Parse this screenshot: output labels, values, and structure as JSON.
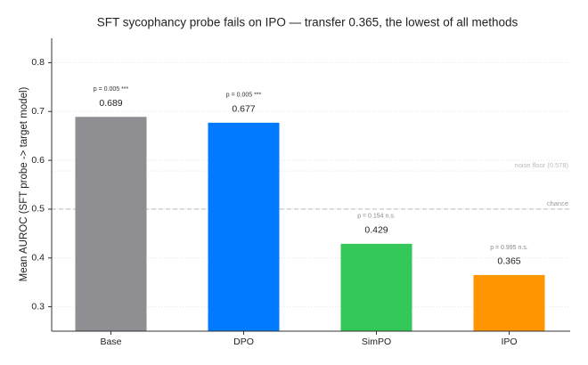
{
  "chart_data": {
    "type": "bar",
    "title": "SFT sycophancy probe fails on IPO — transfer 0.365, the lowest of all methods",
    "y_label": "Mean AUROC (SFT probe -> target model)",
    "categories": [
      "Base",
      "DPO",
      "SimPO",
      "IPO"
    ],
    "values": [
      0.689,
      0.677,
      0.429,
      0.365
    ],
    "colors": [
      "#8e8e93",
      "#007aff",
      "#34c759",
      "#ff9500"
    ],
    "annotations": [
      "p = 0.005 ***",
      "p = 0.005 ***",
      "p = 0.154  n.s.",
      "p = 0.995  n.s."
    ],
    "reference_lines": [
      {
        "value": 0.5,
        "label": "chance"
      },
      {
        "value": 0.578,
        "label": "noise floor (0.578)"
      }
    ],
    "ylim": [
      0.25,
      0.85
    ],
    "yticks": [
      0.3,
      0.4,
      0.5,
      0.6,
      0.7,
      0.8
    ],
    "grid": true
  }
}
